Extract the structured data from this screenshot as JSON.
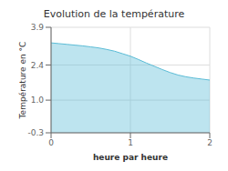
{
  "chart_data": {
    "type": "area",
    "title": "Evolution de la température",
    "xlabel": "heure par heure",
    "ylabel": "Température en °C",
    "x": [
      0.0,
      0.1,
      0.2,
      0.3,
      0.4,
      0.5,
      0.6,
      0.7,
      0.8,
      0.9,
      1.0,
      1.1,
      1.2,
      1.3,
      1.4,
      1.5,
      1.6,
      1.7,
      1.8,
      1.9,
      2.0
    ],
    "values": [
      3.28,
      3.25,
      3.22,
      3.19,
      3.16,
      3.12,
      3.08,
      3.02,
      2.95,
      2.85,
      2.75,
      2.62,
      2.48,
      2.35,
      2.22,
      2.1,
      2.0,
      1.93,
      1.88,
      1.84,
      1.8
    ],
    "color": "#5bbcd6",
    "xlim": [
      0,
      2
    ],
    "ylim": [
      -0.3,
      3.9
    ],
    "xticks": [
      0,
      1,
      2
    ],
    "yticks": [
      -0.3,
      {
        "value": 1.0,
        "label": "1.0"
      },
      2.4,
      3.9
    ],
    "grid": true
  }
}
